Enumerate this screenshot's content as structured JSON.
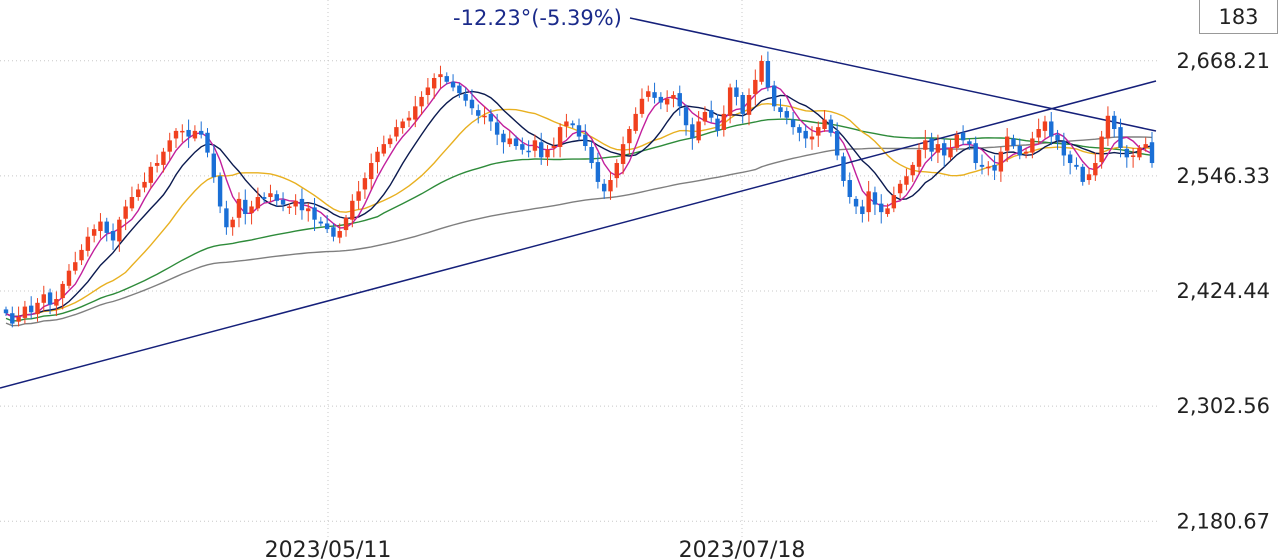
{
  "candle_count": "183",
  "colors": {
    "up": "#f0401e",
    "down": "#1a6fd6",
    "ma5": "#c21f9c",
    "ma10": "#0b1a4f",
    "ma20": "#e8b020",
    "ma60": "#2e8b3a",
    "ma120": "#7f7f7f",
    "trend": "#15207a",
    "grid": "#c8c8c8"
  },
  "chart_data": {
    "type": "candlestick",
    "y_ticks": [
      "2,668.21",
      "2,546.33",
      "2,424.44",
      "2,302.56",
      "2,180.67"
    ],
    "y_tick_values": [
      2668.21,
      2546.33,
      2424.44,
      2302.56,
      2180.67
    ],
    "x_ticks": [
      "2023/05/11",
      "2023/07/18"
    ],
    "ylim": [
      2163,
      2722
    ],
    "grid": true,
    "annotation": "-12.23°(-5.39%)",
    "close": [
      2401,
      2390,
      2397,
      2408,
      2402,
      2412,
      2421,
      2410,
      2416,
      2432,
      2446,
      2455,
      2468,
      2482,
      2490,
      2498,
      2486,
      2478,
      2500,
      2514,
      2524,
      2532,
      2540,
      2556,
      2560,
      2572,
      2584,
      2594,
      2594,
      2588,
      2594,
      2590,
      2571,
      2545,
      2514,
      2492,
      2500,
      2522,
      2506,
      2514,
      2524,
      2522,
      2528,
      2520,
      2516,
      2514,
      2520,
      2510,
      2512,
      2500,
      2496,
      2490,
      2482,
      2488,
      2502,
      2520,
      2530,
      2544,
      2560,
      2572,
      2580,
      2586,
      2598,
      2604,
      2608,
      2620,
      2630,
      2640,
      2650,
      2654,
      2646,
      2640,
      2634,
      2626,
      2618,
      2610,
      2610,
      2604,
      2590,
      2582,
      2586,
      2578,
      2574,
      2572,
      2584,
      2566,
      2574,
      2578,
      2598,
      2604,
      2600,
      2588,
      2578,
      2560,
      2540,
      2530,
      2542,
      2560,
      2580,
      2596,
      2612,
      2628,
      2636,
      2629,
      2624,
      2628,
      2632,
      2620,
      2600,
      2586,
      2604,
      2614,
      2608,
      2594,
      2612,
      2640,
      2630,
      2612,
      2632,
      2648,
      2668,
      2640,
      2620,
      2614,
      2608,
      2598,
      2592,
      2586,
      2588,
      2598,
      2606,
      2592,
      2568,
      2541,
      2524,
      2514,
      2506,
      2530,
      2516,
      2508,
      2512,
      2526,
      2538,
      2546,
      2558,
      2574,
      2584,
      2572,
      2580,
      2568,
      2576,
      2590,
      2584,
      2580,
      2560,
      2556,
      2556,
      2552,
      2572,
      2588,
      2578,
      2568,
      2572,
      2586,
      2596,
      2604,
      2588,
      2584,
      2568,
      2560,
      2556,
      2540,
      2548,
      2560,
      2588,
      2610,
      2596,
      2576,
      2566,
      2568,
      2576,
      2580,
      2560
    ]
  }
}
